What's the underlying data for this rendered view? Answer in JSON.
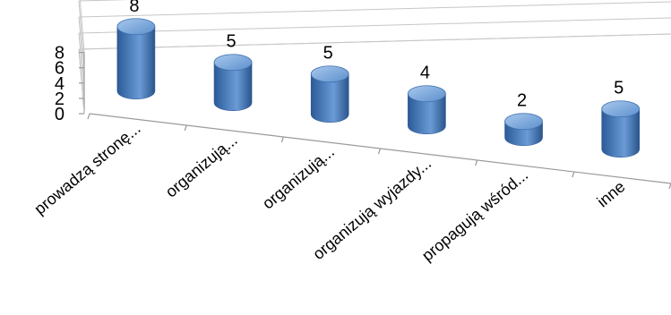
{
  "chart_data": {
    "type": "bar",
    "bar_shape": "cylinder",
    "perspective": "3d",
    "categories": [
      "prowadzą stronę...",
      "organizują...",
      "organizują...",
      "organizują wyjazdy...",
      "propagują wśród...",
      "inne"
    ],
    "values": [
      8,
      5,
      5,
      4,
      2,
      5
    ],
    "ylim": [
      0,
      8
    ],
    "yticks": [
      "0",
      "2",
      "4",
      "6",
      "8"
    ],
    "grid": true,
    "legend": "none",
    "colors": {
      "bar": "#4f81bd",
      "bar_dark": "#2e5b94",
      "bar_light": "#9ec2ea",
      "grid": "#c6c6c6"
    }
  }
}
